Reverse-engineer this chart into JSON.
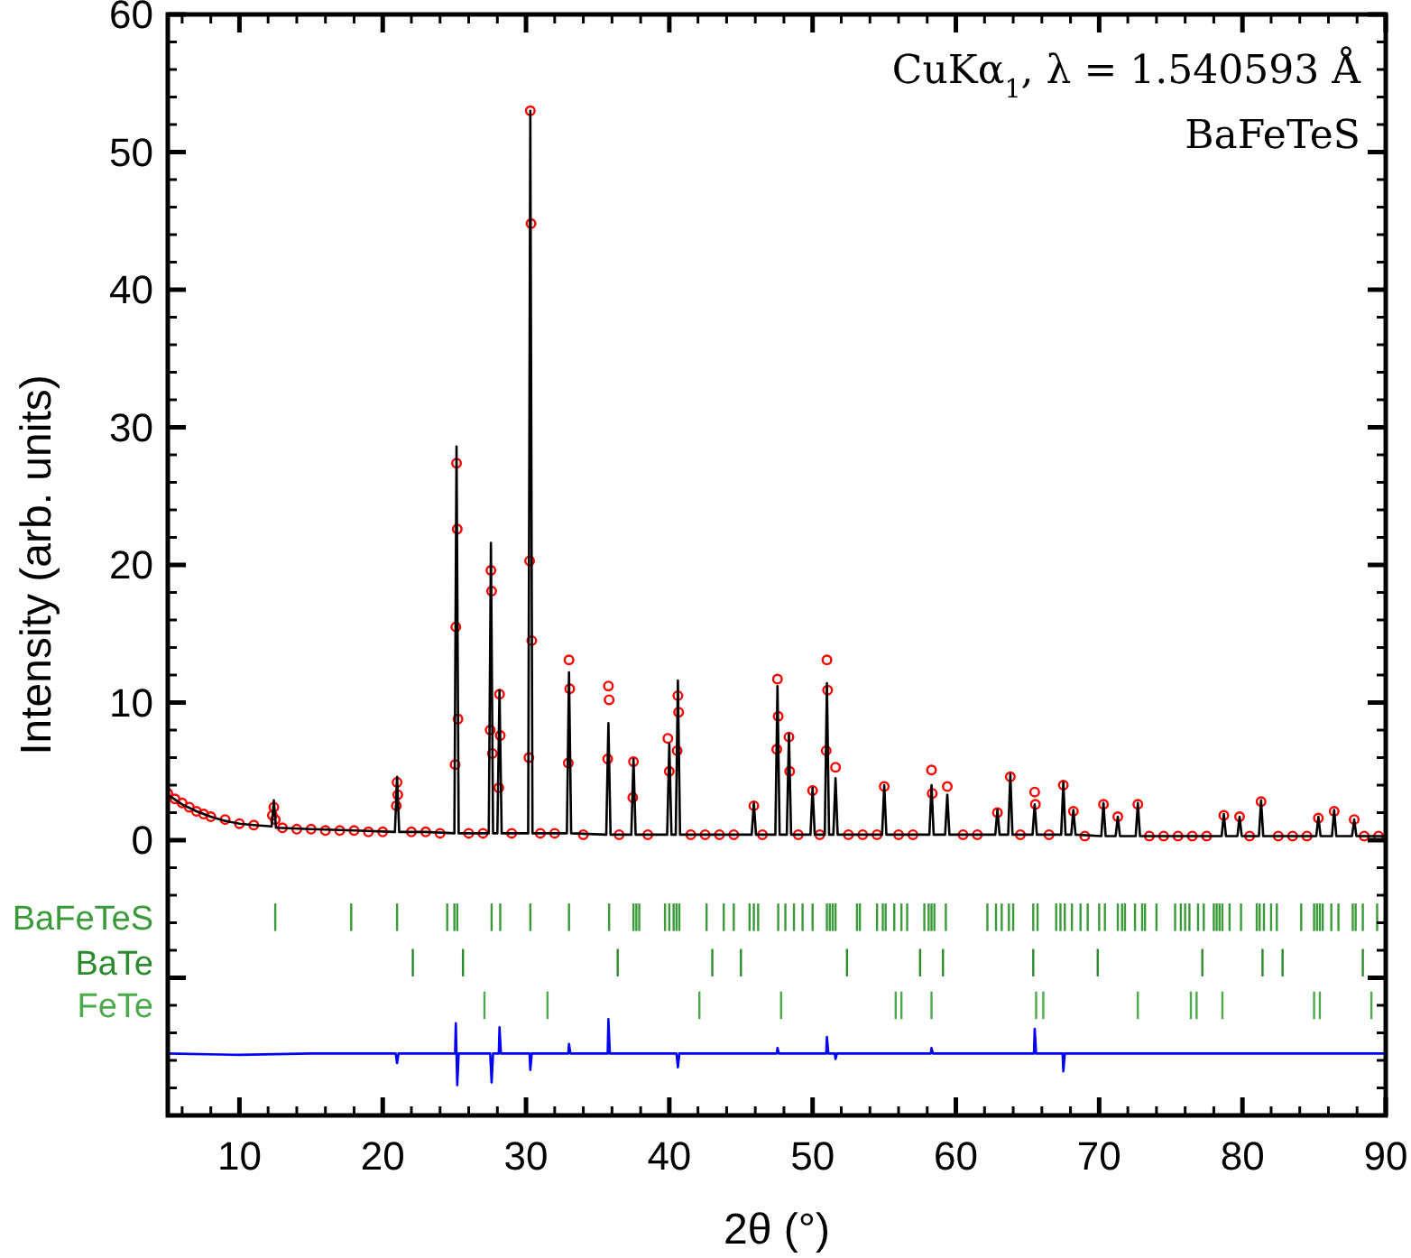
{
  "chart_data": {
    "type": "line",
    "xlabel": "2θ (°)",
    "ylabel": "Intensity (arb. units)",
    "annotations": [
      "CuKα$_{1}$, λ = 1.540593 Å",
      "BaFeTeS"
    ],
    "xlim": [
      5,
      90
    ],
    "ylim": [
      -20,
      60
    ],
    "xticks": [
      {
        "value": 6,
        "label": null
      },
      {
        "value": 8,
        "label": null
      },
      10,
      {
        "value": 12,
        "label": null
      },
      {
        "value": 14,
        "label": null
      },
      {
        "value": 16,
        "label": null
      },
      {
        "value": 18,
        "label": null
      },
      20,
      {
        "value": 22,
        "label": null
      },
      {
        "value": 24,
        "label": null
      },
      {
        "value": 26,
        "label": null
      },
      {
        "value": 28,
        "label": null
      },
      30,
      {
        "value": 32,
        "label": null
      },
      {
        "value": 34,
        "label": null
      },
      {
        "value": 36,
        "label": null
      },
      {
        "value": 38,
        "label": null
      },
      40,
      {
        "value": 42,
        "label": null
      },
      {
        "value": 44,
        "label": null
      },
      {
        "value": 46,
        "label": null
      },
      {
        "value": 48,
        "label": null
      },
      50,
      {
        "value": 52,
        "label": null
      },
      {
        "value": 54,
        "label": null
      },
      {
        "value": 56,
        "label": null
      },
      {
        "value": 58,
        "label": null
      },
      60,
      {
        "value": 62,
        "label": null
      },
      {
        "value": 64,
        "label": null
      },
      {
        "value": 66,
        "label": null
      },
      {
        "value": 68,
        "label": null
      },
      70,
      {
        "value": 72,
        "label": null
      },
      {
        "value": 74,
        "label": null
      },
      {
        "value": 76,
        "label": null
      },
      {
        "value": 78,
        "label": null
      },
      80,
      {
        "value": 82,
        "label": null
      },
      {
        "value": 84,
        "label": null
      },
      {
        "value": 86,
        "label": null
      },
      {
        "value": 88,
        "label": null
      },
      90
    ],
    "yticks": [
      {
        "value": -18,
        "label": null
      },
      {
        "value": -16,
        "label": null
      },
      {
        "value": -14,
        "label": null
      },
      {
        "value": -12,
        "label": null
      },
      {
        "value": -10,
        "label": null
      },
      {
        "value": -8,
        "label": null
      },
      {
        "value": -6,
        "label": null
      },
      {
        "value": -4,
        "label": null
      },
      {
        "value": -2,
        "label": null
      },
      0,
      {
        "value": 2,
        "label": null
      },
      {
        "value": 4,
        "label": null
      },
      {
        "value": 6,
        "label": null
      },
      {
        "value": 8,
        "label": null
      },
      10,
      {
        "value": 12,
        "label": null
      },
      {
        "value": 14,
        "label": null
      },
      {
        "value": 16,
        "label": null
      },
      {
        "value": 18,
        "label": null
      },
      20,
      {
        "value": 22,
        "label": null
      },
      {
        "value": 24,
        "label": null
      },
      {
        "value": 26,
        "label": null
      },
      {
        "value": 28,
        "label": null
      },
      30,
      {
        "value": 32,
        "label": null
      },
      {
        "value": 34,
        "label": null
      },
      {
        "value": 36,
        "label": null
      },
      {
        "value": 38,
        "label": null
      },
      40,
      {
        "value": 42,
        "label": null
      },
      {
        "value": 44,
        "label": null
      },
      {
        "value": 46,
        "label": null
      },
      {
        "value": 48,
        "label": null
      },
      50,
      {
        "value": 52,
        "label": null
      },
      {
        "value": 54,
        "label": null
      },
      {
        "value": 56,
        "label": null
      },
      {
        "value": 58,
        "label": null
      },
      60
    ],
    "series": [
      {
        "type": "scatter",
        "marker": "circle",
        "color": "#ff0000",
        "x": [
          5,
          5.5,
          6,
          6.5,
          7,
          7.5,
          8,
          9,
          10,
          11,
          12.3,
          12.4,
          12.5,
          13,
          14,
          15,
          16,
          17,
          18,
          19,
          20,
          20.95,
          21.0,
          21.05,
          22,
          23,
          24,
          25.05,
          25.1,
          25.15,
          25.2,
          25.25,
          26,
          27,
          27.5,
          27.55,
          27.6,
          27.65,
          28.1,
          28.15,
          28.2,
          29,
          30.2,
          30.25,
          30.3,
          30.35,
          30.4,
          31,
          32,
          32.95,
          33.0,
          33.05,
          34,
          35.7,
          35.75,
          35.8,
          36.5,
          37.45,
          37.5,
          38.5,
          39.9,
          40.0,
          40.55,
          40.6,
          40.65,
          41.5,
          42.5,
          43.5,
          44.5,
          45.9,
          46.5,
          47.5,
          47.55,
          47.6,
          48.35,
          48.4,
          49,
          50.0,
          50.5,
          50.95,
          51.0,
          51.05,
          51.6,
          52.5,
          53.5,
          54.5,
          55.0,
          56,
          57,
          58.3,
          58.35,
          59.4,
          60.5,
          61.5,
          62.9,
          63.8,
          64.5,
          65.5,
          65.55,
          66.5,
          67.5,
          68.2,
          69,
          70.3,
          71.3,
          72.7,
          73.5,
          74.5,
          75.5,
          76.5,
          77.5,
          78.7,
          79.8,
          80.5,
          81.3,
          82.5,
          83.5,
          84.5,
          85.3,
          86.4,
          87.8,
          88.5,
          89.5
        ],
        "values": [
          3.4,
          3.0,
          2.7,
          2.4,
          2.1,
          1.9,
          1.7,
          1.5,
          1.2,
          1.1,
          1.8,
          2.4,
          1.5,
          0.9,
          0.8,
          0.8,
          0.7,
          0.7,
          0.7,
          0.6,
          0.6,
          2.5,
          4.2,
          3.3,
          0.6,
          0.6,
          0.5,
          5.5,
          15.5,
          27.4,
          22.6,
          8.8,
          0.5,
          0.5,
          8.0,
          19.6,
          18.1,
          6.3,
          3.8,
          10.6,
          7.6,
          0.5,
          6.0,
          20.3,
          53.0,
          44.8,
          14.5,
          0.5,
          0.5,
          5.6,
          13.1,
          11.0,
          0.4,
          5.9,
          11.2,
          10.2,
          0.4,
          3.1,
          5.7,
          0.4,
          7.4,
          5.0,
          6.5,
          10.5,
          9.3,
          0.4,
          0.4,
          0.4,
          0.4,
          2.5,
          0.4,
          6.6,
          11.7,
          9.0,
          7.5,
          5.0,
          0.4,
          3.6,
          0.4,
          6.5,
          13.1,
          10.9,
          5.3,
          0.4,
          0.4,
          0.4,
          3.9,
          0.4,
          0.4,
          5.1,
          3.4,
          3.9,
          0.4,
          0.4,
          2.0,
          4.6,
          0.4,
          3.5,
          2.6,
          0.4,
          4.0,
          2.1,
          0.3,
          2.6,
          1.7,
          2.6,
          0.3,
          0.3,
          0.3,
          0.3,
          0.3,
          1.8,
          1.7,
          0.3,
          2.8,
          0.3,
          0.3,
          0.3,
          1.6,
          2.1,
          1.5,
          0.3,
          0.3
        ]
      },
      {
        "color": "#000000",
        "x": [
          5,
          6,
          7,
          8,
          9,
          10,
          11,
          12.25,
          12.4,
          12.55,
          15,
          18,
          20.85,
          21.0,
          21.15,
          23,
          25.0,
          25.15,
          25.3,
          27.4,
          27.55,
          27.7,
          28.0,
          28.15,
          28.3,
          30.15,
          30.3,
          30.45,
          32.85,
          33.0,
          33.15,
          35.6,
          35.75,
          35.9,
          37.35,
          37.5,
          37.65,
          39.85,
          40.0,
          40.15,
          40.45,
          40.6,
          40.75,
          43,
          45.75,
          45.9,
          46.05,
          47.4,
          47.55,
          47.7,
          48.2,
          48.35,
          48.5,
          49.85,
          50.0,
          50.15,
          50.85,
          51.0,
          51.15,
          51.45,
          51.6,
          51.75,
          54.85,
          55.0,
          55.15,
          58.15,
          58.3,
          58.45,
          59.25,
          59.4,
          59.55,
          62.75,
          62.9,
          63.05,
          63.65,
          63.8,
          63.95,
          65.35,
          65.5,
          65.65,
          67.35,
          67.5,
          67.65,
          68.05,
          68.2,
          68.35,
          70.15,
          70.3,
          70.45,
          71.15,
          71.3,
          71.45,
          72.55,
          72.7,
          72.85,
          75,
          78.55,
          78.7,
          78.85,
          79.65,
          79.8,
          79.95,
          81.15,
          81.3,
          81.45,
          83,
          85.15,
          85.3,
          85.45,
          86.25,
          86.4,
          86.55,
          87.65,
          87.8,
          87.95,
          90
        ],
        "values": [
          3.3,
          2.6,
          2.1,
          1.7,
          1.4,
          1.2,
          1.1,
          1.0,
          2.9,
          0.9,
          0.8,
          0.7,
          0.6,
          4.6,
          0.6,
          0.6,
          0.5,
          28.6,
          0.5,
          0.5,
          21.6,
          0.5,
          0.5,
          10.9,
          0.5,
          0.5,
          53.0,
          0.5,
          0.5,
          12.2,
          0.5,
          0.4,
          8.5,
          0.4,
          0.4,
          5.9,
          0.4,
          0.4,
          7.0,
          0.4,
          0.4,
          11.6,
          0.4,
          0.4,
          0.4,
          2.7,
          0.4,
          0.4,
          11.2,
          0.4,
          0.4,
          7.7,
          0.4,
          0.4,
          3.8,
          0.4,
          0.4,
          11.4,
          0.4,
          0.4,
          4.5,
          0.4,
          0.4,
          4.0,
          0.4,
          0.4,
          4.0,
          0.4,
          0.4,
          3.3,
          0.4,
          0.4,
          2.2,
          0.4,
          0.4,
          4.8,
          0.4,
          0.4,
          2.6,
          0.4,
          0.4,
          4.2,
          0.4,
          0.4,
          2.2,
          0.4,
          0.3,
          2.7,
          0.3,
          0.3,
          1.7,
          0.3,
          0.3,
          2.7,
          0.3,
          0.3,
          0.3,
          1.9,
          0.3,
          0.3,
          1.7,
          0.3,
          0.3,
          2.9,
          0.3,
          0.3,
          0.3,
          1.7,
          0.3,
          0.3,
          2.2,
          0.3,
          0.3,
          1.5,
          0.3,
          0.3
        ]
      },
      {
        "color": "#0000ff",
        "x": [
          5,
          10,
          15,
          20.9,
          21.0,
          21.1,
          25.05,
          25.1,
          25.2,
          25.3,
          27.5,
          27.6,
          27.7,
          28.1,
          28.15,
          28.25,
          30.25,
          30.3,
          30.4,
          32.95,
          33.0,
          33.1,
          35.7,
          35.75,
          35.85,
          40.5,
          40.6,
          40.7,
          45,
          47.5,
          47.55,
          47.65,
          50.95,
          51.0,
          51.1,
          51.55,
          51.6,
          51.7,
          55,
          58.25,
          58.3,
          58.4,
          64,
          65.45,
          65.5,
          65.6,
          67.45,
          67.5,
          67.6,
          70,
          75,
          80,
          85,
          90
        ],
        "values": [
          -15.5,
          -15.6,
          -15.5,
          -15.5,
          -16.2,
          -15.5,
          -15.5,
          -13.3,
          -17.8,
          -15.5,
          -15.5,
          -17.6,
          -15.5,
          -15.5,
          -13.6,
          -15.5,
          -15.5,
          -16.7,
          -15.5,
          -15.5,
          -14.8,
          -15.5,
          -15.5,
          -13.0,
          -15.5,
          -15.5,
          -16.5,
          -15.5,
          -15.5,
          -15.5,
          -15.1,
          -15.5,
          -15.5,
          -14.3,
          -15.5,
          -15.5,
          -15.9,
          -15.5,
          -15.5,
          -15.5,
          -15.1,
          -15.5,
          -15.5,
          -15.5,
          -13.7,
          -15.5,
          -15.5,
          -16.8,
          -15.5,
          -15.5,
          -15.5,
          -15.5,
          -15.5,
          -15.5
        ]
      },
      {
        "type": "bar",
        "name": "BaFeTeS",
        "color": "#3a9a3a",
        "base": [
          -6.6,
          -6.6,
          -6.6,
          -6.6,
          -6.6,
          -6.6,
          -6.6,
          -6.6,
          -6.6,
          -6.6,
          -6.6,
          -6.6,
          -6.6,
          -6.6,
          -6.6,
          -6.6,
          -6.6,
          -6.6,
          -6.6,
          -6.6,
          -6.6,
          -6.6,
          -6.6,
          -6.6,
          -6.6,
          -6.6,
          -6.6,
          -6.6,
          -6.6,
          -6.6,
          -6.6,
          -6.6,
          -6.6,
          -6.6,
          -6.6,
          -6.6,
          -6.6,
          -6.6,
          -6.6,
          -6.6,
          -6.6,
          -6.6,
          -6.6,
          -6.6,
          -6.6,
          -6.6,
          -6.6,
          -6.6,
          -6.6,
          -6.6,
          -6.6,
          -6.6,
          -6.6,
          -6.6,
          -6.6,
          -6.6,
          -6.6,
          -6.6,
          -6.6,
          -6.6,
          -6.6,
          -6.6,
          -6.6,
          -6.6,
          -6.6,
          -6.6,
          -6.6,
          -6.6,
          -6.6,
          -6.6,
          -6.6,
          -6.6,
          -6.6,
          -6.6,
          -6.6,
          -6.6,
          -6.6,
          -6.6,
          -6.6,
          -6.6,
          -6.6,
          -6.6,
          -6.6,
          -6.6,
          -6.6,
          -6.6,
          -6.6,
          -6.6,
          -6.6,
          -6.6,
          -6.6,
          -6.6,
          -6.6,
          -6.6,
          -6.6,
          -6.6,
          -6.6
        ],
        "x": [
          12.5,
          17.8,
          21.0,
          24.5,
          25.0,
          25.2,
          27.6,
          28.2,
          30.3,
          33.0,
          35.8,
          37.5,
          37.7,
          37.9,
          39.7,
          40.0,
          40.3,
          40.5,
          40.7,
          42.6,
          43.8,
          44.5,
          45.6,
          45.9,
          46.2,
          47.6,
          48.1,
          48.7,
          49.3,
          50.0,
          51.0,
          51.2,
          51.4,
          51.6,
          53.1,
          53.3,
          54.5,
          54.9,
          55.1,
          55.7,
          56.2,
          56.6,
          57.8,
          58.1,
          58.3,
          58.5,
          59.3,
          62.2,
          62.8,
          63.2,
          63.7,
          64.0,
          65.4,
          65.7,
          67.0,
          67.3,
          67.6,
          68.1,
          68.7,
          69.2,
          70.0,
          70.4,
          71.3,
          71.6,
          71.8,
          72.5,
          73.0,
          73.2,
          74.0,
          75.3,
          75.7,
          76.0,
          76.3,
          76.9,
          77.3,
          78.0,
          78.2,
          78.4,
          78.6,
          79.1,
          79.9,
          81.0,
          81.2,
          81.5,
          82.0,
          82.4,
          84.1,
          85.0,
          85.2,
          85.4,
          85.6,
          86.2,
          86.7,
          87.7,
          87.9,
          88.4,
          89.4
        ],
        "values": [
          2,
          2,
          2,
          2,
          2,
          2,
          2,
          2,
          2,
          2,
          2,
          2,
          2,
          2,
          2,
          2,
          2,
          2,
          2,
          2,
          2,
          2,
          2,
          2,
          2,
          2,
          2,
          2,
          2,
          2,
          2,
          2,
          2,
          2,
          2,
          2,
          2,
          2,
          2,
          2,
          2,
          2,
          2,
          2,
          2,
          2,
          2,
          2,
          2,
          2,
          2,
          2,
          2,
          2,
          2,
          2,
          2,
          2,
          2,
          2,
          2,
          2,
          2,
          2,
          2,
          2,
          2,
          2,
          2,
          2,
          2,
          2,
          2,
          2,
          2,
          2,
          2,
          2,
          2,
          2,
          2,
          2,
          2,
          2,
          2,
          2,
          2,
          2,
          2,
          2,
          2,
          2,
          2,
          2,
          2,
          2,
          2
        ]
      },
      {
        "type": "bar",
        "name": "BaTe",
        "color": "#2b8a2b",
        "x": [
          22.1,
          25.6,
          36.4,
          43.0,
          45.0,
          52.4,
          57.5,
          59.1,
          65.4,
          69.9,
          77.2,
          81.4,
          82.8,
          88.4
        ],
        "base": [
          -9.9,
          -9.9,
          -9.9,
          -9.9,
          -9.9,
          -9.9,
          -9.9,
          -9.9,
          -9.9,
          -9.9,
          -9.9,
          -9.9,
          -9.9,
          -9.9
        ],
        "values": [
          2,
          2,
          2,
          2,
          2,
          2,
          2,
          2,
          2,
          2,
          2,
          2,
          2,
          2
        ]
      },
      {
        "type": "bar",
        "name": "FeTe",
        "color": "#4caa4c",
        "x": [
          27.1,
          31.5,
          42.1,
          47.8,
          55.8,
          56.2,
          58.3,
          65.6,
          66.1,
          72.7,
          76.4,
          76.8,
          78.6,
          85.0,
          85.4,
          89.0
        ],
        "base": [
          -13,
          -13,
          -13,
          -13,
          -13,
          -13,
          -13,
          -13,
          -13,
          -13,
          -13,
          -13,
          -13,
          -13,
          -13,
          -13
        ],
        "values": [
          2,
          2,
          2,
          2,
          2,
          2,
          2,
          2,
          2,
          2,
          2,
          2,
          2,
          2,
          2,
          2
        ]
      }
    ]
  }
}
